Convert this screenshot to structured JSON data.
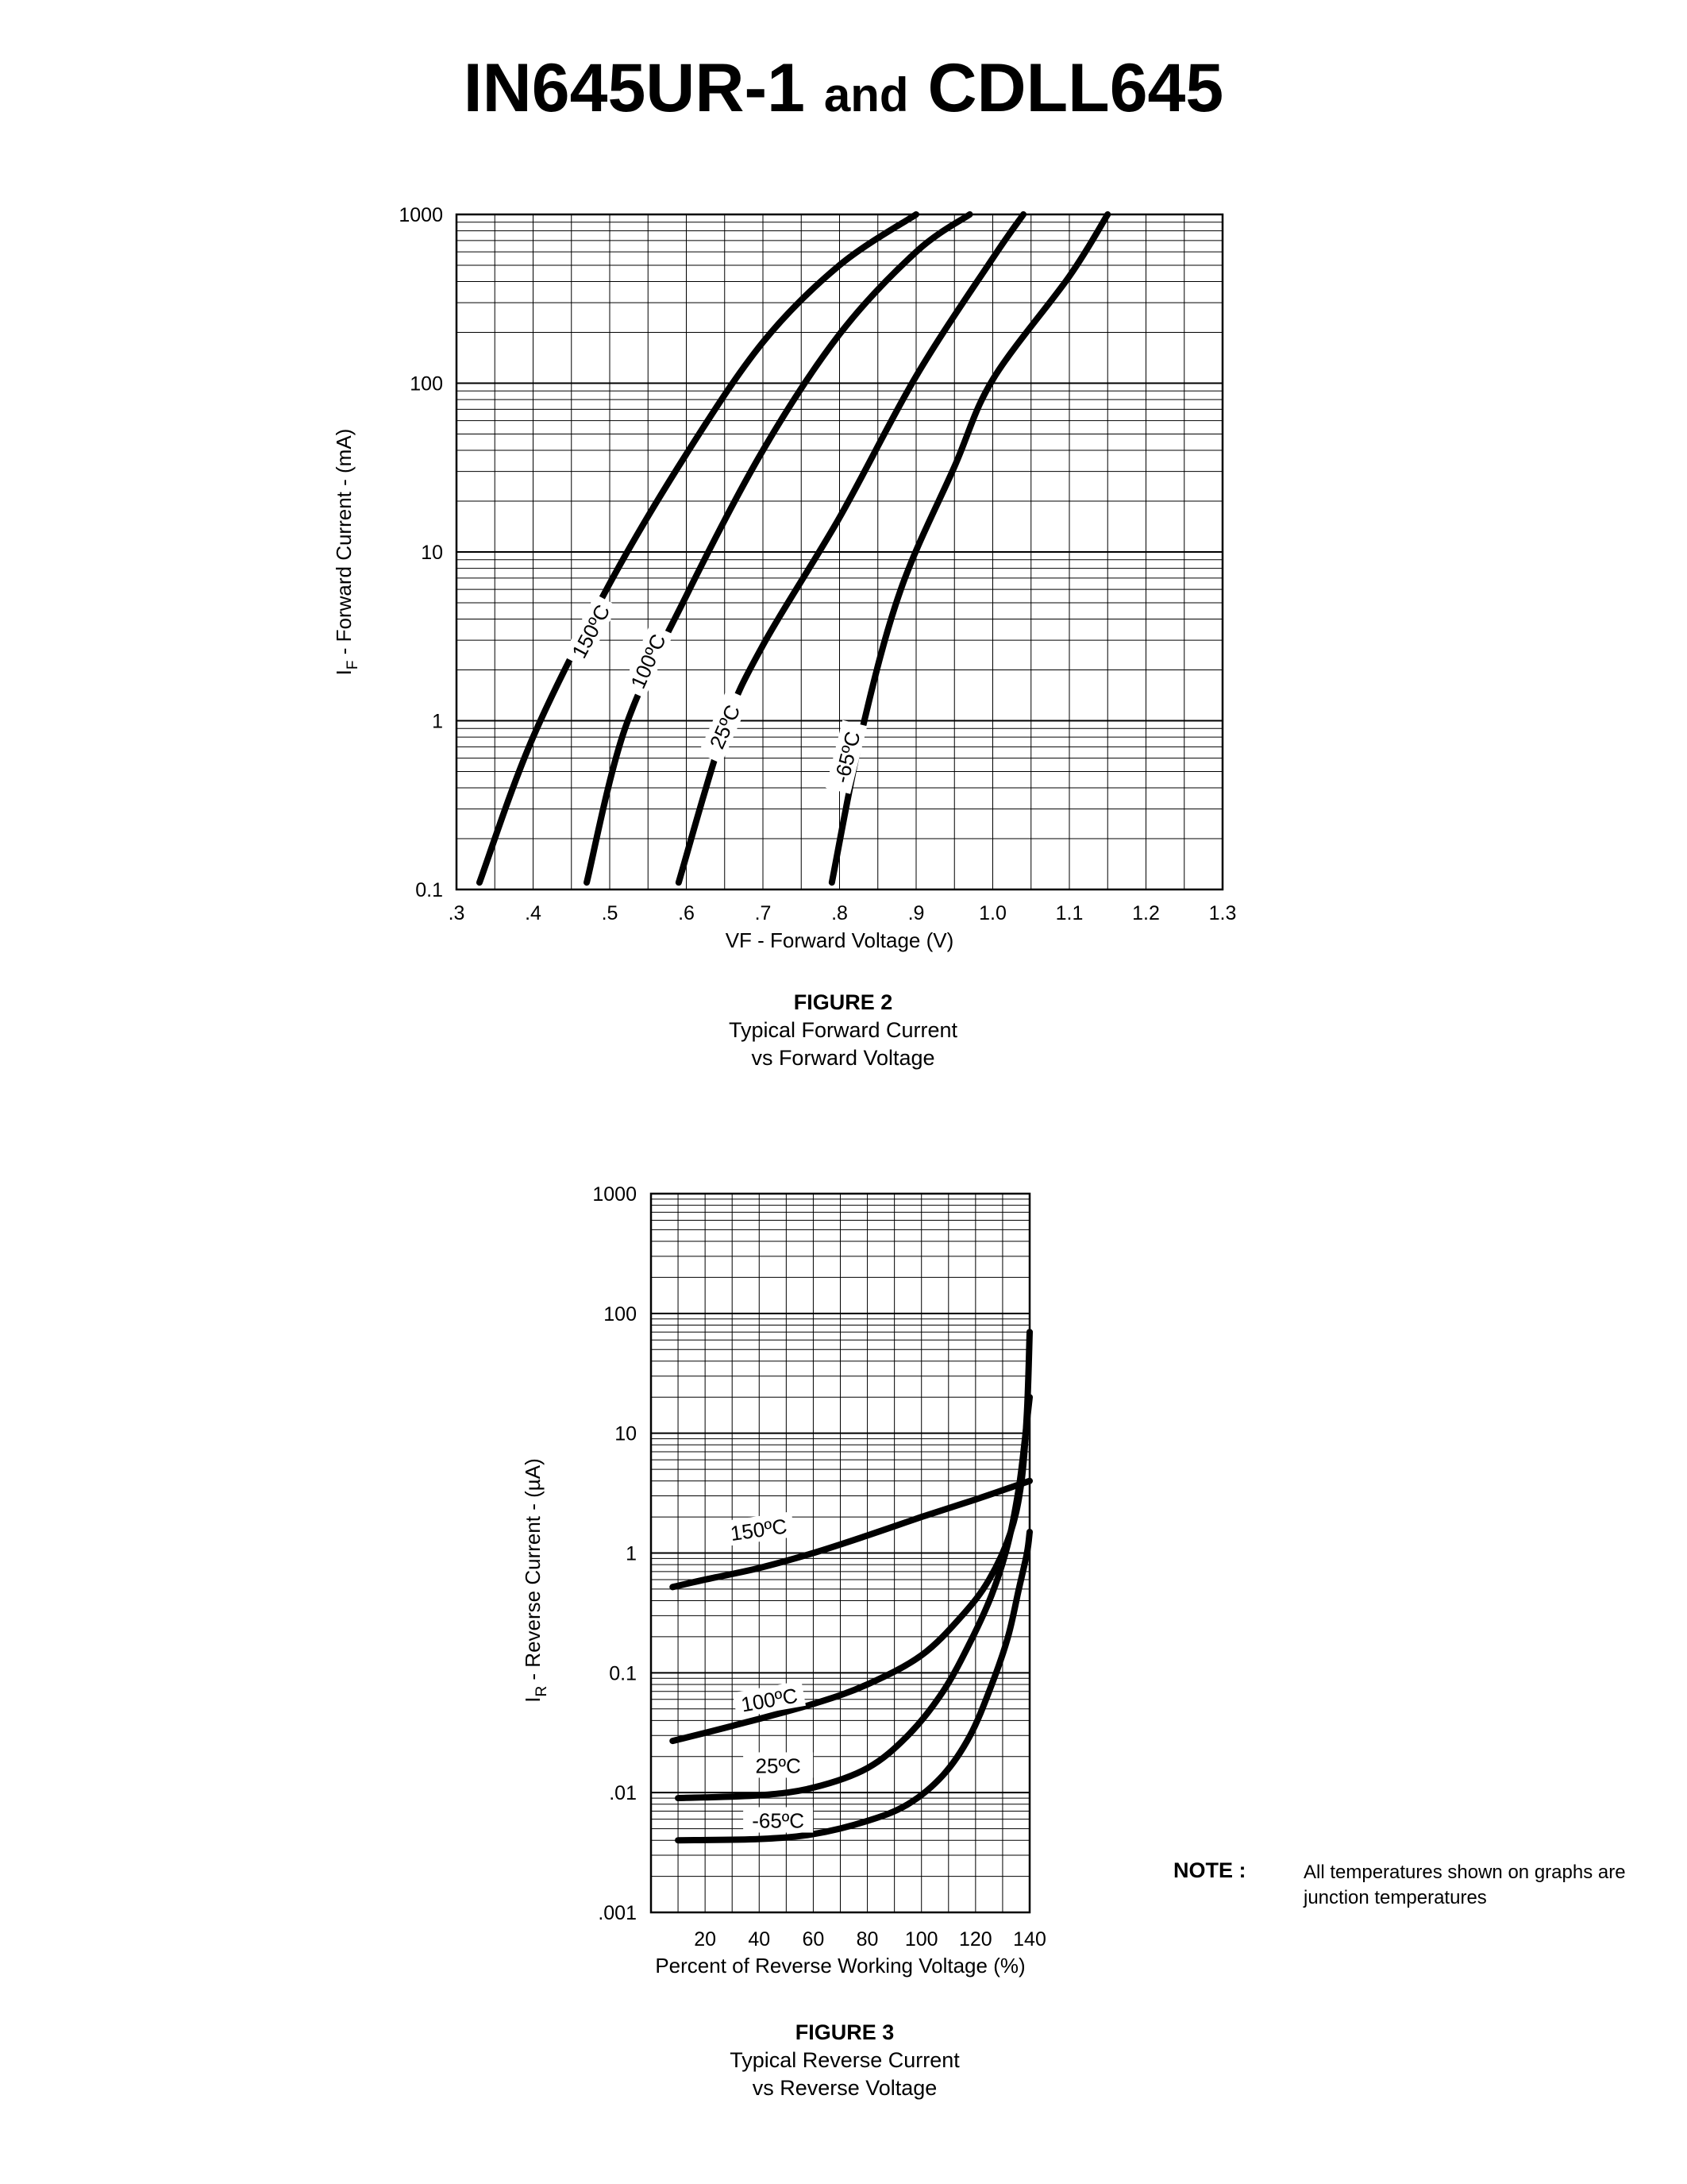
{
  "title": {
    "part1": "IN645UR-1",
    "and": "and",
    "part2": "CDLL645"
  },
  "chart_data": [
    {
      "type": "line",
      "yscale": "log",
      "xlabel": "VF - Forward Voltage (V)",
      "ylabel_main": "I",
      "ylabel_sub": "F",
      "ylabel_rest": " - Forward Current - (mA)",
      "xlim": [
        0.3,
        1.3
      ],
      "ylim": [
        0.1,
        1000
      ],
      "x_ticks": [
        0.3,
        0.4,
        0.5,
        0.6,
        0.7,
        0.8,
        0.9,
        1.0,
        1.1,
        1.2,
        1.3
      ],
      "x_tick_labels": [
        ".3",
        ".4",
        ".5",
        ".6",
        ".7",
        ".8",
        ".9",
        "1.0",
        "1.1",
        "1.2",
        "1.3"
      ],
      "y_ticks": [
        0.1,
        1,
        10,
        100,
        1000
      ],
      "y_tick_labels": [
        "0.1",
        "1",
        "10",
        "100",
        "1000"
      ],
      "grid": true,
      "series": [
        {
          "name": "150ºC",
          "label_pos": [
            0.48,
            3.3
          ],
          "label_angle": -62,
          "points": [
            [
              0.33,
              0.11
            ],
            [
              0.4,
              0.8
            ],
            [
              0.5,
              6.5
            ],
            [
              0.6,
              38
            ],
            [
              0.7,
              175
            ],
            [
              0.8,
              500
            ],
            [
              0.9,
              1000
            ]
          ]
        },
        {
          "name": "100ºC",
          "label_pos": [
            0.555,
            2.2
          ],
          "label_angle": -66,
          "points": [
            [
              0.47,
              0.11
            ],
            [
              0.52,
              0.9
            ],
            [
              0.6,
              5.5
            ],
            [
              0.7,
              40
            ],
            [
              0.8,
              195
            ],
            [
              0.9,
              600
            ],
            [
              0.97,
              1000
            ]
          ]
        },
        {
          "name": "25ºC",
          "label_pos": [
            0.655,
            0.9
          ],
          "label_angle": -66,
          "points": [
            [
              0.59,
              0.11
            ],
            [
              0.65,
              0.9
            ],
            [
              0.7,
              2.8
            ],
            [
              0.8,
              16
            ],
            [
              0.9,
              110
            ],
            [
              1.0,
              550
            ],
            [
              1.04,
              1000
            ]
          ]
        },
        {
          "name": "-65ºC",
          "label_pos": [
            0.815,
            0.6
          ],
          "label_angle": -76,
          "points": [
            [
              0.79,
              0.11
            ],
            [
              0.83,
              0.9
            ],
            [
              0.88,
              6
            ],
            [
              0.95,
              32
            ],
            [
              1.0,
              105
            ],
            [
              1.1,
              430
            ],
            [
              1.15,
              1000
            ]
          ]
        }
      ]
    },
    {
      "type": "line",
      "yscale": "log",
      "xlabel": "Percent of Reverse Working Voltage (%)",
      "ylabel_main": "I",
      "ylabel_sub": "R",
      "ylabel_rest": " - Reverse Current - (µA)",
      "xlim": [
        0,
        140
      ],
      "ylim": [
        0.001,
        1000
      ],
      "x_ticks": [
        20,
        40,
        60,
        80,
        100,
        120,
        140
      ],
      "x_tick_labels": [
        "20",
        "40",
        "60",
        "80",
        "100",
        "120",
        "140"
      ],
      "y_ticks": [
        0.001,
        0.01,
        0.1,
        1,
        10,
        100,
        1000
      ],
      "y_tick_labels": [
        ".001",
        ".01",
        "0.1",
        "1",
        "10",
        "100",
        "1000"
      ],
      "grid": true,
      "series": [
        {
          "name": "150ºC",
          "label_pos": [
            40,
            1.45
          ],
          "label_angle": -8,
          "points": [
            [
              8,
              0.52
            ],
            [
              20,
              0.6
            ],
            [
              40,
              0.75
            ],
            [
              60,
              1.0
            ],
            [
              80,
              1.4
            ],
            [
              100,
              2.0
            ],
            [
              120,
              2.8
            ],
            [
              140,
              4.0
            ]
          ]
        },
        {
          "name": "100ºC",
          "label_pos": [
            44,
            0.055
          ],
          "label_angle": -10,
          "points": [
            [
              8,
              0.027
            ],
            [
              30,
              0.036
            ],
            [
              60,
              0.055
            ],
            [
              80,
              0.08
            ],
            [
              100,
              0.14
            ],
            [
              115,
              0.3
            ],
            [
              125,
              0.6
            ],
            [
              133,
              1.5
            ],
            [
              137,
              4
            ],
            [
              139,
              15
            ],
            [
              140,
              70
            ]
          ]
        },
        {
          "name": "25ºC",
          "label_pos": [
            47,
            0.0155
          ],
          "label_angle": 0,
          "points": [
            [
              10,
              0.009
            ],
            [
              40,
              0.0095
            ],
            [
              60,
              0.011
            ],
            [
              80,
              0.016
            ],
            [
              95,
              0.03
            ],
            [
              108,
              0.07
            ],
            [
              118,
              0.18
            ],
            [
              126,
              0.45
            ],
            [
              132,
              1.2
            ],
            [
              136,
              3.5
            ],
            [
              138.5,
              10
            ],
            [
              140,
              20
            ]
          ]
        },
        {
          "name": "-65ºC",
          "label_pos": [
            47,
            0.0054
          ],
          "label_angle": 0,
          "points": [
            [
              10,
              0.004
            ],
            [
              40,
              0.0041
            ],
            [
              60,
              0.0045
            ],
            [
              80,
              0.0058
            ],
            [
              95,
              0.008
            ],
            [
              108,
              0.014
            ],
            [
              118,
              0.03
            ],
            [
              126,
              0.08
            ],
            [
              132,
              0.2
            ],
            [
              136,
              0.5
            ],
            [
              139,
              1.0
            ],
            [
              140,
              1.5
            ]
          ]
        }
      ]
    }
  ],
  "figure2": {
    "label": "FIGURE 2",
    "line1": "Typical Forward Current",
    "line2": "vs Forward Voltage"
  },
  "figure3": {
    "label": "FIGURE 3",
    "line1": "Typical Reverse Current",
    "line2": "vs Reverse Voltage"
  },
  "note": {
    "label": "NOTE :",
    "text": "All temperatures shown on graphs are junction temperatures"
  }
}
